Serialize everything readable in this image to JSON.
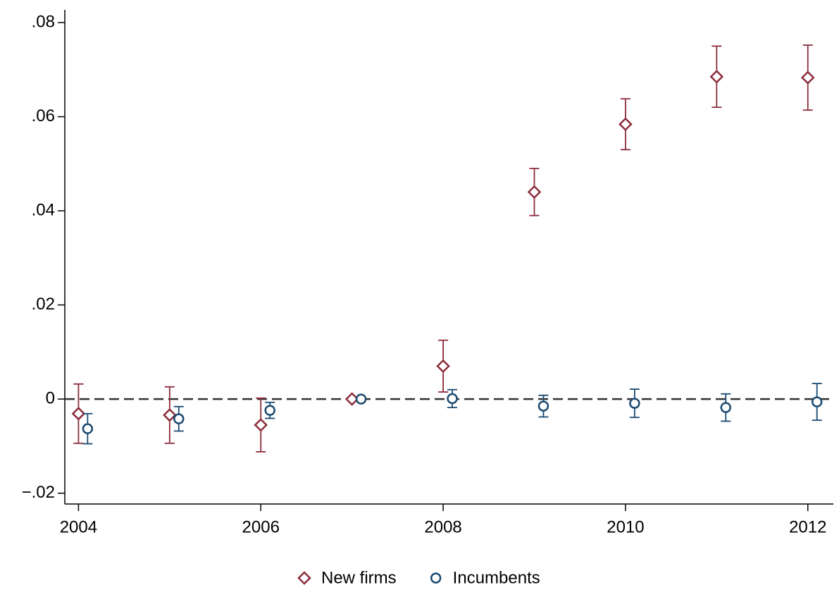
{
  "chart_data": {
    "type": "errorbar-scatter",
    "xlim": [
      2003.85,
      2012.28
    ],
    "xticks": [
      2004,
      2006,
      2008,
      2010,
      2012
    ],
    "ylim": [
      -0.0223,
      0.0827
    ],
    "yticks": [
      {
        "value": -0.02,
        "label": "−.02"
      },
      0,
      {
        "value": 0.02,
        "label": ".02"
      },
      {
        "value": 0.04,
        "label": ".04"
      },
      {
        "value": 0.06,
        "label": ".06"
      },
      {
        "value": 0.08,
        "label": ".08"
      }
    ],
    "hline": 0,
    "series": [
      {
        "name": "New firms",
        "color": "#8c2d3c",
        "marker": "diamond",
        "x": [
          2004,
          2005,
          2006,
          2007,
          2008,
          2009,
          2010,
          2011,
          2012
        ],
        "values": [
          -0.0031,
          -0.0034,
          -0.0055,
          0,
          0.007,
          0.044,
          0.0584,
          0.0685,
          0.0683
        ],
        "errors": [
          0.0063,
          0.006,
          0.0057,
          0,
          0.0055,
          0.005,
          0.0054,
          0.0065,
          0.0069
        ]
      },
      {
        "name": "Incumbents",
        "color": "#1a4a72",
        "marker": "circle",
        "x": [
          2004.1,
          2005.1,
          2006.1,
          2007.1,
          2008.1,
          2009.1,
          2010.1,
          2011.1,
          2012.1
        ],
        "values": [
          -0.0063,
          -0.0042,
          -0.0024,
          0,
          0.0001,
          -0.0015,
          -0.0009,
          -0.0018,
          -0.0006
        ],
        "errors": [
          0.0032,
          0.0026,
          0.0017,
          0,
          0.0019,
          0.0023,
          0.003,
          0.0029,
          0.0039
        ]
      }
    ]
  }
}
